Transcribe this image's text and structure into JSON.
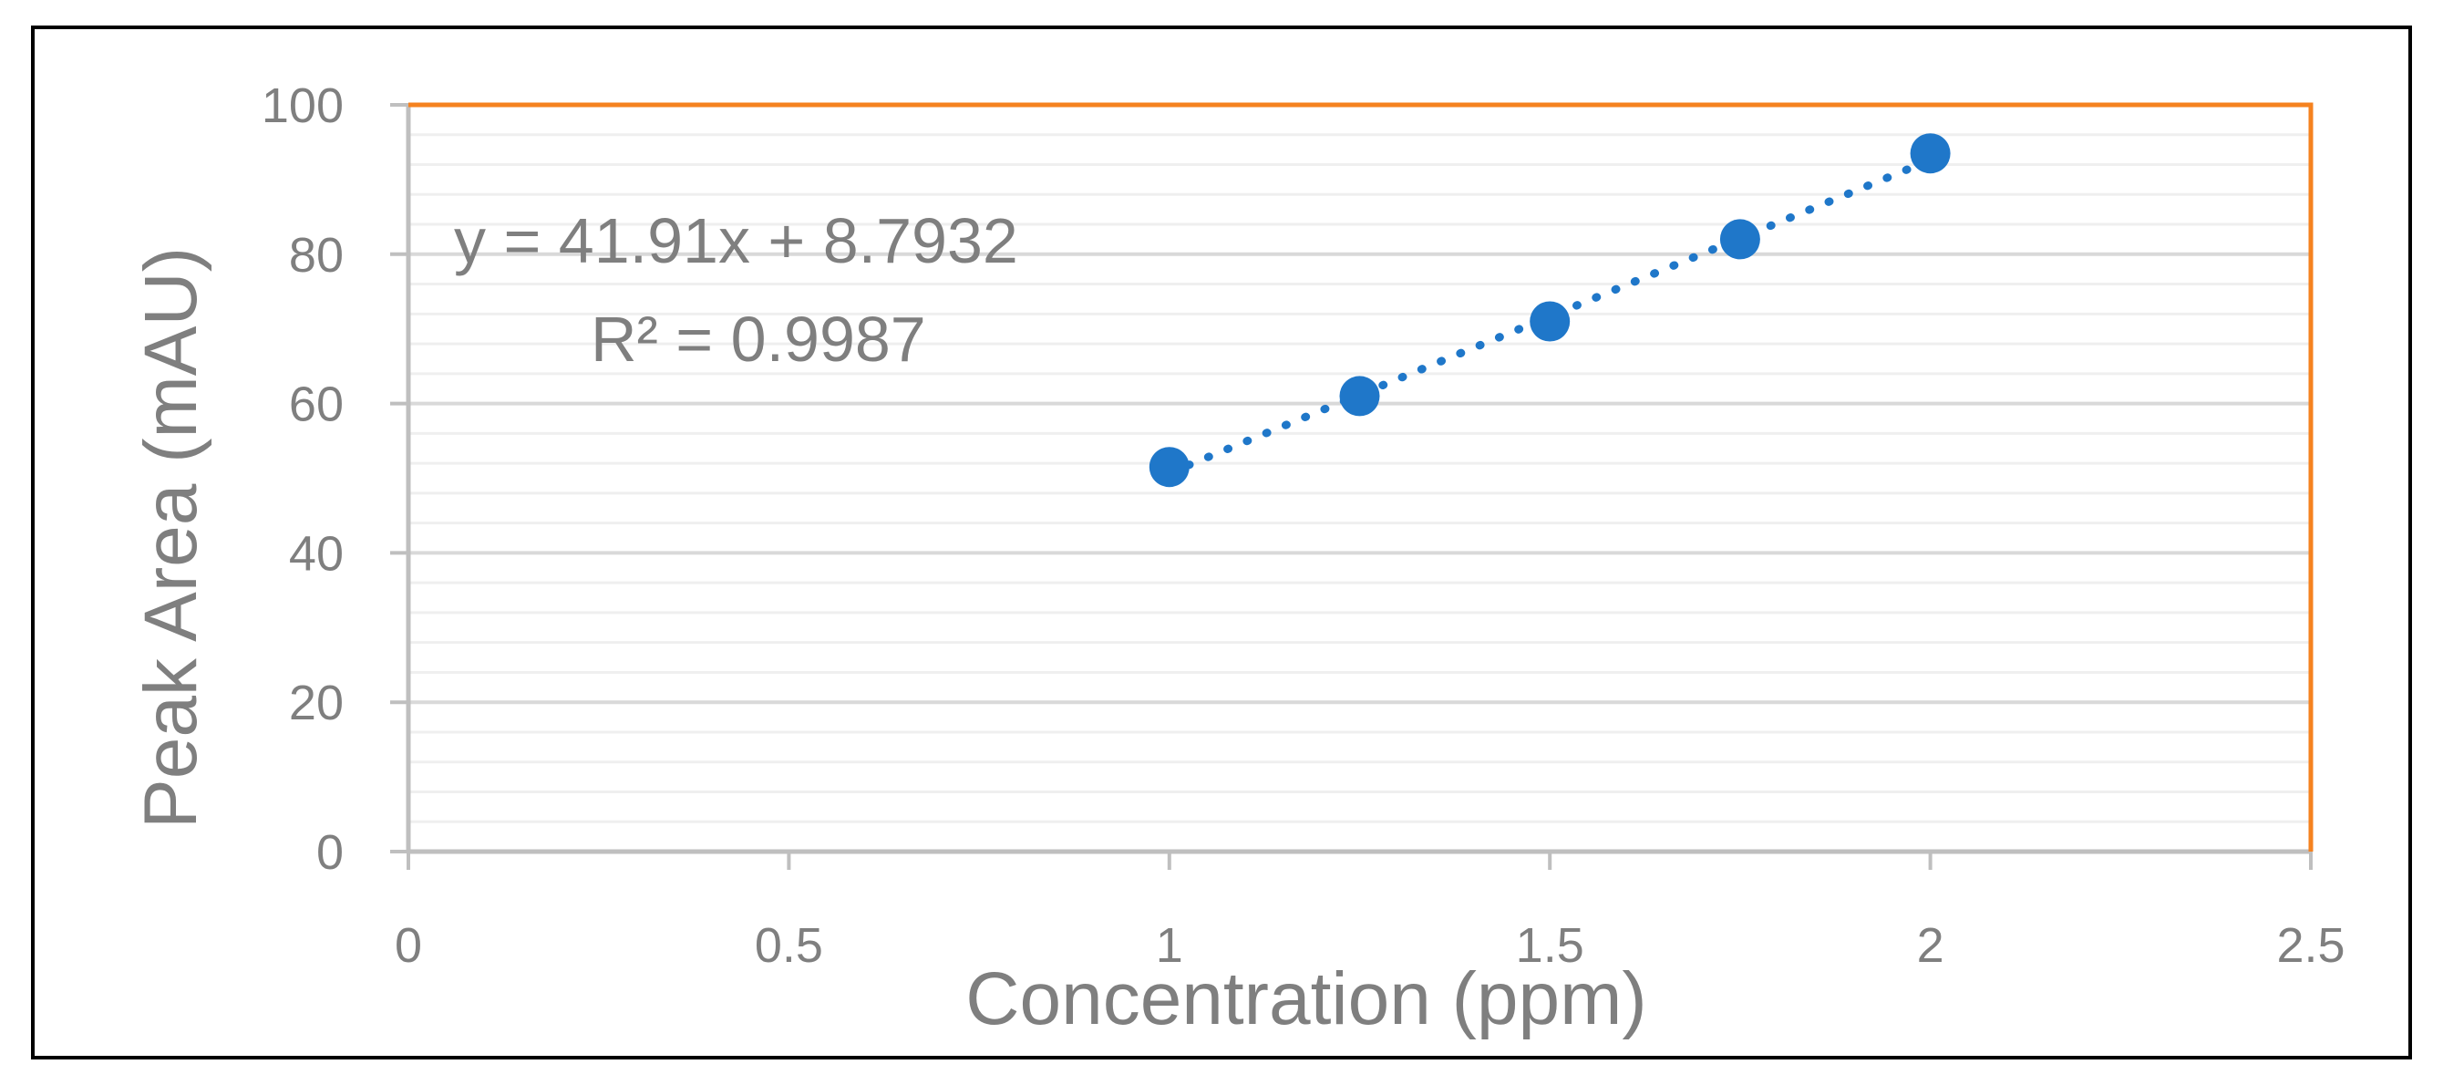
{
  "chart_data": {
    "type": "scatter",
    "xlabel": "Concentration (ppm)",
    "ylabel": "Peak Area (mAU)",
    "xlim": [
      0,
      2.5
    ],
    "ylim": [
      0,
      100
    ],
    "x_ticks": [
      "0",
      "0.5",
      "1",
      "1.5",
      "2",
      "2.5"
    ],
    "y_ticks": [
      "0",
      "20",
      "40",
      "60",
      "80",
      "100"
    ],
    "x_tick_values": [
      0,
      0.5,
      1,
      1.5,
      2,
      2.5
    ],
    "y_tick_values": [
      0,
      20,
      40,
      60,
      80,
      100
    ],
    "grid": true,
    "minor_grid_step": 4,
    "series": [
      {
        "x": [
          1,
          1.25,
          1.5,
          1.75,
          2
        ],
        "y": [
          51.5,
          61,
          71,
          82,
          93.5
        ],
        "color": "#1f77c9"
      }
    ],
    "trendline": {
      "type": "linear",
      "slope": 41.91,
      "intercept": 8.7932,
      "x_range": [
        1,
        2
      ],
      "style": "dotted",
      "color": "#1f77c9"
    },
    "annotations": {
      "equation": "y = 41.91x + 8.7932",
      "r_squared": "R² = 0.9987"
    },
    "colors": {
      "gridline": "#d9d9d9",
      "minor_gridline": "#efefef",
      "axis": "#bfbfbf",
      "plot_border": "#f5821f",
      "text": "#7f7f7f"
    }
  }
}
